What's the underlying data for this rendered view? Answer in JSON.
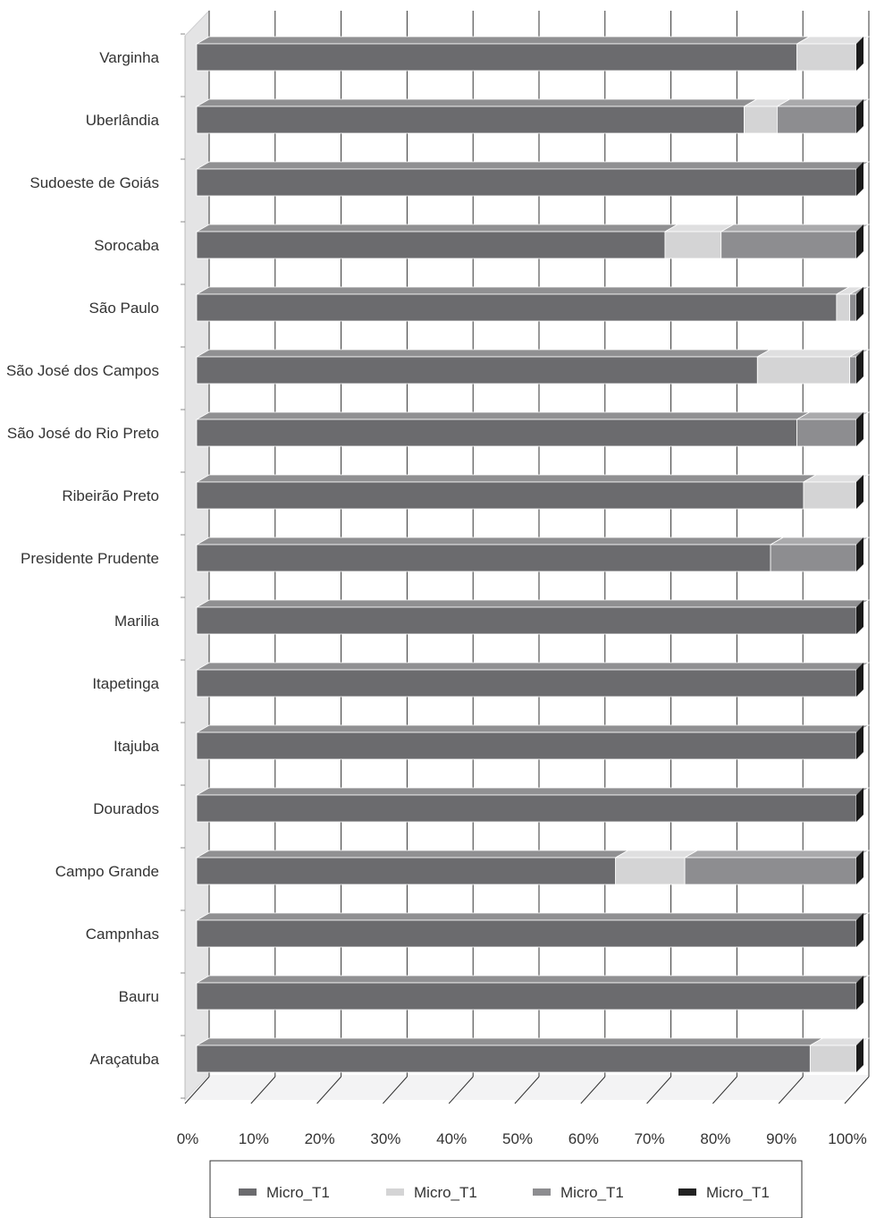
{
  "chart_data": {
    "type": "bar",
    "orientation": "horizontal",
    "stacked": "percent",
    "style": "3d",
    "title": "",
    "xlabel": "",
    "ylabel": "",
    "xlim": [
      0,
      100
    ],
    "x_ticks": [
      "0%",
      "10%",
      "20%",
      "30%",
      "40%",
      "50%",
      "60%",
      "70%",
      "80%",
      "90%",
      "100%"
    ],
    "grid": "vertical",
    "legend_position": "bottom",
    "categories": [
      "Varginha",
      "Uberlândia",
      "Sudoeste de Goiás",
      "Sorocaba",
      "São Paulo",
      "São José dos Campos",
      "São José do Rio Preto",
      "Ribeirão Preto",
      "Presidente Prudente",
      "Marilia",
      "Itapetinga",
      "Itajuba",
      "Dourados",
      "Campo Grande",
      "Campnhas",
      "Bauru",
      "Araçatuba"
    ],
    "series": [
      {
        "name": "Micro_T1",
        "color": "#6b6b6e",
        "values": [
          91,
          83,
          100,
          71,
          97,
          85,
          91,
          92,
          87,
          100,
          100,
          100,
          100,
          63.5,
          100,
          100,
          93
        ]
      },
      {
        "name": "Micro_T1",
        "color": "#d4d4d5",
        "values": [
          9,
          5,
          0,
          8.5,
          2,
          14,
          0,
          8,
          0,
          0,
          0,
          0,
          0,
          10.5,
          0,
          0,
          7
        ]
      },
      {
        "name": "Micro_T1",
        "color": "#8d8d90",
        "values": [
          0,
          12,
          0,
          20.5,
          1,
          1,
          9,
          0,
          13,
          0,
          0,
          0,
          0,
          26,
          0,
          0,
          0
        ]
      },
      {
        "name": "Micro_T1",
        "color": "#222222",
        "values": [
          0,
          0,
          0,
          0,
          0,
          0,
          0,
          0,
          0,
          0,
          0,
          0,
          0,
          0,
          0,
          0,
          0
        ]
      }
    ]
  }
}
